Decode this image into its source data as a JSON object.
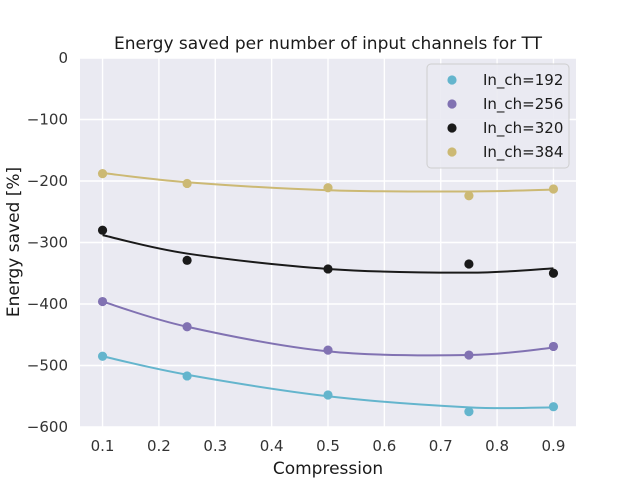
{
  "chart_data": {
    "type": "scatter",
    "title": "Energy saved per number of input channels for TT",
    "xlabel": "Compression",
    "ylabel": "Energy saved [%]",
    "xlim": [
      0.06,
      0.94
    ],
    "ylim": [
      -600,
      0
    ],
    "xticks": [
      0.1,
      0.2,
      0.3,
      0.4,
      0.5,
      0.6,
      0.7,
      0.8,
      0.9
    ],
    "xtick_labels": [
      "0.1",
      "0.2",
      "0.3",
      "0.4",
      "0.5",
      "0.6",
      "0.7",
      "0.8",
      "0.9"
    ],
    "yticks": [
      0,
      -100,
      -200,
      -300,
      -400,
      -500,
      -600
    ],
    "ytick_labels": [
      "0",
      "−100",
      "−200",
      "−300",
      "−400",
      "−500",
      "−600"
    ],
    "grid": true,
    "background": "#eaeaf2",
    "legend_position": "top-right",
    "x": [
      0.1,
      0.25,
      0.5,
      0.75,
      0.9
    ],
    "series": [
      {
        "name": "In_ch=192",
        "color": "#64b5cd",
        "points": [
          -485,
          -517,
          -548,
          -575,
          -567
        ],
        "fit": [
          -485,
          -515,
          -550,
          -568,
          -568
        ]
      },
      {
        "name": "In_ch=256",
        "color": "#8172b2",
        "points": [
          -396,
          -437,
          -475,
          -483,
          -469
        ],
        "fit": [
          -396,
          -437,
          -477,
          -483,
          -471
        ]
      },
      {
        "name": "In_ch=320",
        "color": "#1a1a1a",
        "points": [
          -280,
          -329,
          -343,
          -335,
          -350
        ],
        "fit": [
          -288,
          -318,
          -343,
          -349,
          -342
        ]
      },
      {
        "name": "In_ch=384",
        "color": "#ccb974",
        "points": [
          -188,
          -204,
          -211,
          -224,
          -213
        ],
        "fit": [
          -187,
          -202,
          -215,
          -217,
          -214
        ]
      }
    ]
  }
}
